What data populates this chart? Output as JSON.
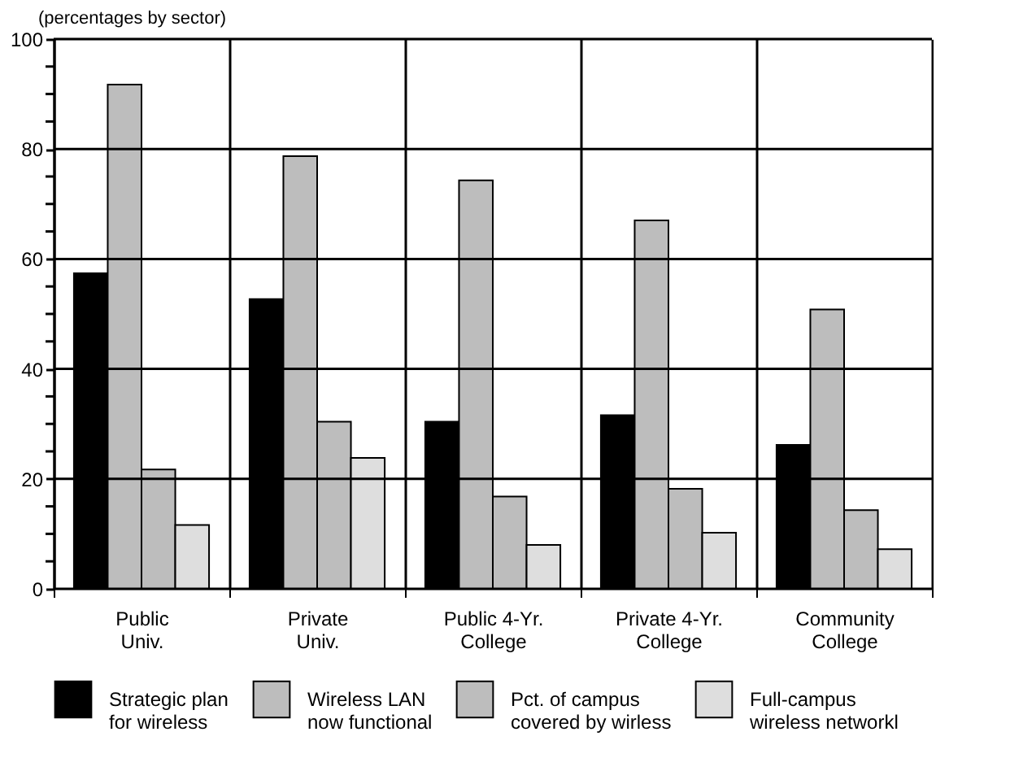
{
  "chart_data": {
    "type": "bar",
    "ylabel": "(percentages by sector)",
    "categories": [
      "Public\nUniv.",
      "Private\nUniv.",
      "Public 4-Yr.\nCollege",
      "Private 4-Yr.\nCollege",
      "Community\nCollege"
    ],
    "series": [
      {
        "name": "Strategic plan\nfor wireless",
        "color": "#000000",
        "values": [
          57.4,
          52.7,
          30.4,
          31.6,
          26.2
        ]
      },
      {
        "name": "Wireless LAN\nnow functional",
        "color": "#bdbdbd",
        "values": [
          91.7,
          78.7,
          74.3,
          67.0,
          50.8
        ]
      },
      {
        "name": "Pct. of campus\ncovered by wirless",
        "color": "#bdbdbd",
        "values": [
          21.7,
          30.4,
          16.8,
          18.2,
          14.3
        ]
      },
      {
        "name": "Full-campus\nwireless networkl",
        "color": "#dedede",
        "values": [
          11.6,
          23.8,
          8.0,
          10.2,
          7.2
        ]
      }
    ],
    "ylim": [
      0,
      100
    ],
    "yticks": [
      0,
      {
        "value": 5,
        "label": null
      },
      {
        "value": 10,
        "label": null
      },
      {
        "value": 15,
        "label": null
      },
      20,
      {
        "value": 25,
        "label": null
      },
      {
        "value": 30,
        "label": null
      },
      {
        "value": 35,
        "label": null
      },
      40,
      {
        "value": 45,
        "label": null
      },
      {
        "value": 50,
        "label": null
      },
      {
        "value": 55,
        "label": null
      },
      60,
      {
        "value": 65,
        "label": null
      },
      {
        "value": 70,
        "label": null
      },
      {
        "value": 75,
        "label": null
      },
      80,
      {
        "value": 85,
        "label": null
      },
      {
        "value": 90,
        "label": null
      },
      {
        "value": 95,
        "label": null
      },
      100
    ],
    "grid": true,
    "legend": "bottom"
  }
}
